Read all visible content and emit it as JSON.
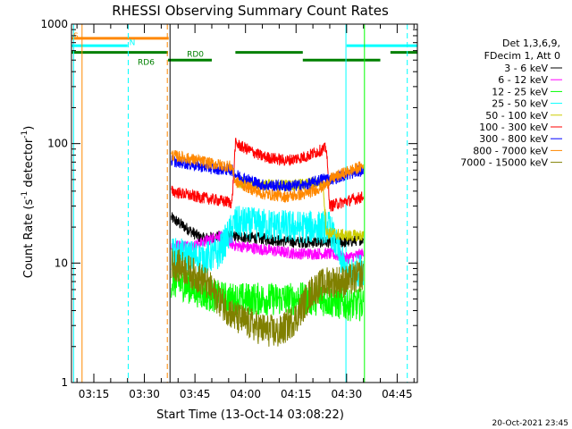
{
  "chart_data": {
    "type": "line",
    "title": "RHESSI Observing Summary Count Rates",
    "xlabel": "Start Time (13-Oct-14 03:08:22)",
    "ylabel_main": "Count Rate (s",
    "ylabel_sup1": "-1",
    "ylabel_mid": " detector",
    "ylabel_sup2": "-1",
    "ylabel_end": ")",
    "yscale": "log",
    "ylim": [
      1,
      1000
    ],
    "xlim_min": [
      188.37,
      291.0
    ],
    "y_ticks": [
      "1",
      "10",
      "100",
      "1000"
    ],
    "x_ticks": [
      {
        "label": "03:15",
        "min": 195
      },
      {
        "label": "03:30",
        "min": 210
      },
      {
        "label": "03:45",
        "min": 225
      },
      {
        "label": "04:00",
        "min": 240
      },
      {
        "label": "04:15",
        "min": 255
      },
      {
        "label": "04:30",
        "min": 270
      },
      {
        "label": "04:45",
        "min": 285
      }
    ],
    "legend_header": [
      "Det 1,3,6,9,",
      "FDecim 1, Att 0"
    ],
    "series": [
      {
        "name": "3 - 6 keV",
        "color": "#000000",
        "values": [
          [
            218,
            24
          ],
          [
            227,
            16
          ],
          [
            235,
            17
          ],
          [
            245,
            16
          ],
          [
            255,
            15
          ],
          [
            265,
            15
          ],
          [
            270,
            15
          ],
          [
            275,
            16
          ]
        ]
      },
      {
        "name": "6 - 12 keV",
        "color": "#ff00ff",
        "values": [
          [
            218,
            14
          ],
          [
            225,
            14
          ],
          [
            232,
            17
          ],
          [
            237,
            14
          ],
          [
            245,
            13
          ],
          [
            255,
            12
          ],
          [
            265,
            12
          ],
          [
            270,
            11
          ],
          [
            275,
            12
          ]
        ]
      },
      {
        "name": "12 - 25 keV",
        "color": "#00ff00",
        "values": [
          [
            218,
            7
          ],
          [
            222,
            6.5
          ],
          [
            228,
            5.5
          ],
          [
            235,
            5
          ],
          [
            245,
            5
          ],
          [
            255,
            5
          ],
          [
            262,
            5
          ],
          [
            270,
            4.5
          ],
          [
            275,
            4.5
          ]
        ]
      },
      {
        "name": "25 - 50 keV",
        "color": "#00ffff",
        "values": [
          [
            218,
            12
          ],
          [
            222,
            11.5
          ],
          [
            228,
            11
          ],
          [
            232,
            12
          ],
          [
            237,
            22
          ],
          [
            245,
            21
          ],
          [
            255,
            20
          ],
          [
            265,
            20
          ],
          [
            270,
            8
          ],
          [
            275,
            9
          ]
        ]
      },
      {
        "name": "50 - 100 keV",
        "color": "#cccc00",
        "values": [
          [
            237,
            48
          ],
          [
            245,
            45
          ],
          [
            255,
            45
          ],
          [
            263,
            48
          ],
          [
            264,
            18
          ],
          [
            270,
            17
          ],
          [
            275,
            17
          ]
        ]
      },
      {
        "name": "100 - 300 keV",
        "color": "#ff0000",
        "values": [
          [
            218,
            40
          ],
          [
            225,
            36
          ],
          [
            228,
            35
          ],
          [
            236,
            32
          ],
          [
            237,
            100
          ],
          [
            245,
            78
          ],
          [
            252,
            72
          ],
          [
            258,
            78
          ],
          [
            264,
            92
          ],
          [
            265,
            30
          ],
          [
            270,
            33
          ],
          [
            275,
            36
          ]
        ]
      },
      {
        "name": "300 - 800 keV",
        "color": "#0000ff",
        "values": [
          [
            218,
            72
          ],
          [
            225,
            66
          ],
          [
            230,
            62
          ],
          [
            236,
            60
          ],
          [
            237,
            55
          ],
          [
            245,
            45
          ],
          [
            252,
            44
          ],
          [
            258,
            45
          ],
          [
            264,
            52
          ],
          [
            265,
            50
          ],
          [
            270,
            55
          ],
          [
            275,
            60
          ]
        ]
      },
      {
        "name": "800 - 7000 keV",
        "color": "#ff8800",
        "values": [
          [
            218,
            80
          ],
          [
            225,
            73
          ],
          [
            230,
            68
          ],
          [
            236,
            64
          ],
          [
            237,
            48
          ],
          [
            245,
            38
          ],
          [
            252,
            36
          ],
          [
            258,
            38
          ],
          [
            264,
            45
          ],
          [
            265,
            50
          ],
          [
            270,
            58
          ],
          [
            275,
            65
          ]
        ]
      },
      {
        "name": "7000 - 15000 keV",
        "color": "#808000",
        "values": [
          [
            218,
            10
          ],
          [
            222,
            9
          ],
          [
            228,
            7
          ],
          [
            232,
            5
          ],
          [
            237,
            3.5
          ],
          [
            245,
            2.8
          ],
          [
            250,
            2.6
          ],
          [
            255,
            3.5
          ],
          [
            260,
            6
          ],
          [
            265,
            7
          ],
          [
            270,
            7
          ],
          [
            275,
            8
          ]
        ]
      }
    ],
    "flag_labels": [
      {
        "text": "S",
        "color": "#ff8800",
        "min": 188.9,
        "y": 800
      },
      {
        "text": "N",
        "color": "#00ffff",
        "min": 205.5,
        "y": 700
      },
      {
        "text": "RD0",
        "color": "#008000",
        "min": 222.6,
        "y": 560
      },
      {
        "text": "RD6",
        "color": "#008000",
        "min": 208.0,
        "y": 480
      }
    ],
    "flag_bars": [
      {
        "color": "#ff8800",
        "y": 760,
        "segments": [
          [
            188.37,
            217.2
          ]
        ]
      },
      {
        "color": "#00ffff",
        "y": 660,
        "segments": [
          [
            188.37,
            205.0
          ],
          [
            270.0,
            291.0
          ]
        ]
      },
      {
        "color": "#008000",
        "y": 580,
        "segments": [
          [
            188.37,
            217.0
          ],
          [
            237.0,
            257.0
          ],
          [
            283.0,
            291.0
          ]
        ]
      },
      {
        "color": "#008000",
        "y": 500,
        "segments": [
          [
            217.0,
            230.0
          ],
          [
            257.0,
            280.0
          ]
        ]
      }
    ],
    "vlines": [
      {
        "color": "#00ffff",
        "min": 189.0,
        "style": "solid"
      },
      {
        "color": "#ff8800",
        "min": 191.5,
        "style": "solid"
      },
      {
        "color": "#00ffff",
        "min": 205.2,
        "style": "dash"
      },
      {
        "color": "#ff8800",
        "min": 216.8,
        "style": "dash"
      },
      {
        "color": "#000000",
        "min": 217.6,
        "style": "solid"
      },
      {
        "color": "#00ffff",
        "min": 269.8,
        "style": "solid"
      },
      {
        "color": "#00ff00",
        "min": 275.3,
        "style": "solid"
      },
      {
        "color": "#00ffff",
        "min": 288.0,
        "style": "dash"
      }
    ],
    "data_window": [
      217.6,
      276.0
    ],
    "footer_date": "20-Oct-2021 23:45"
  }
}
